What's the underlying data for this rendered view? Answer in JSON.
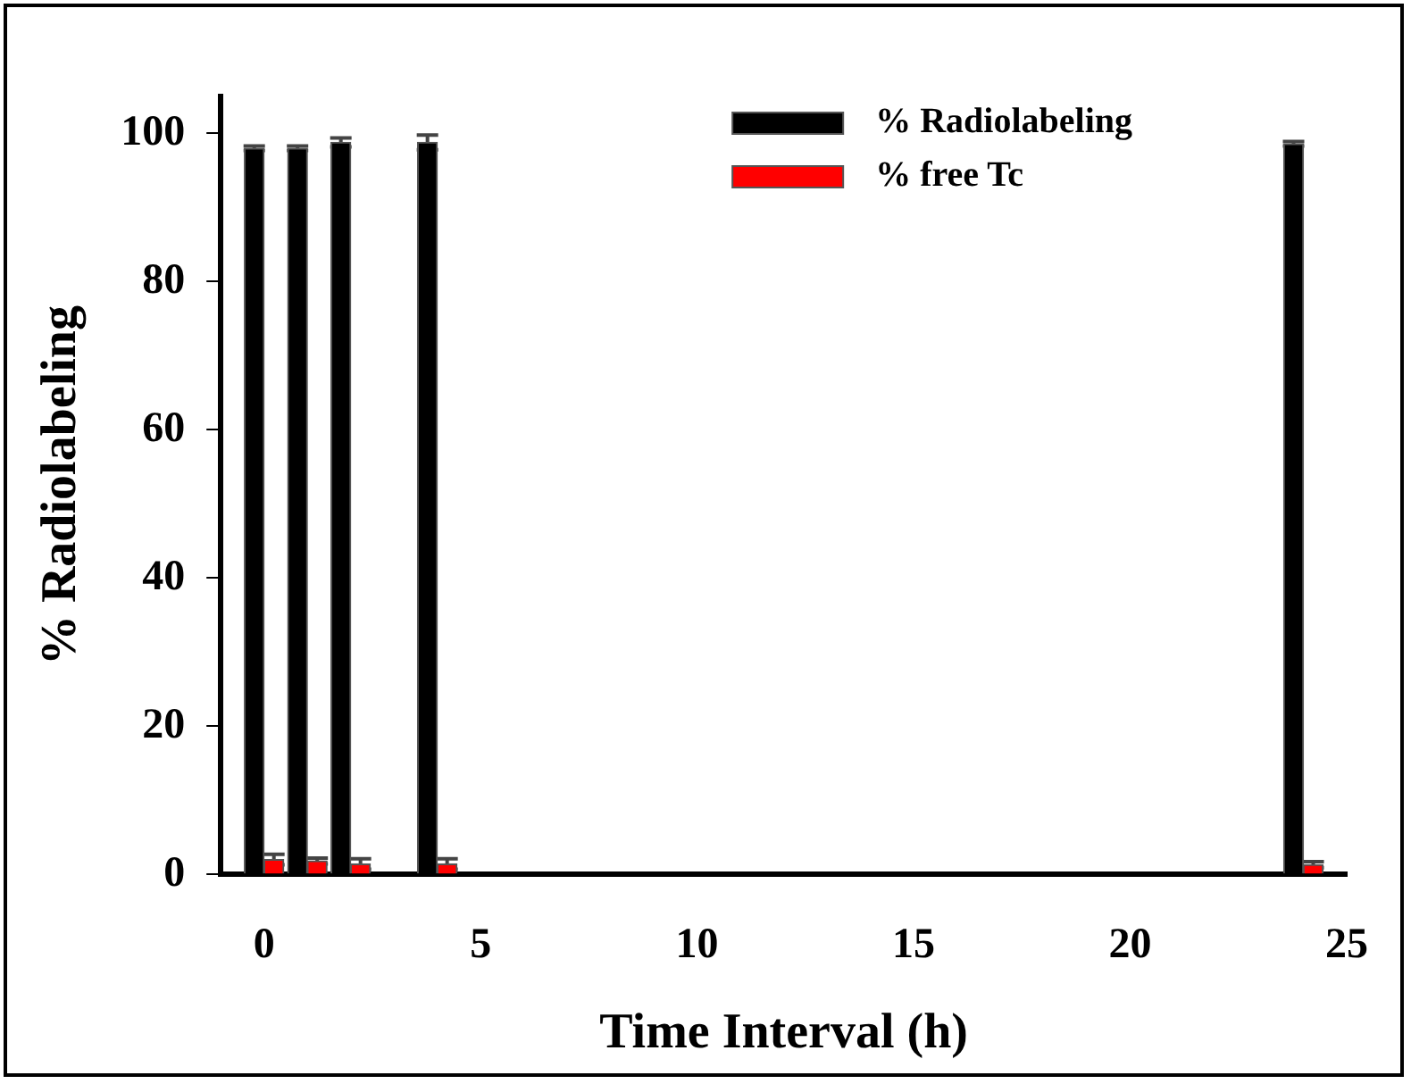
{
  "chart_data": {
    "type": "bar",
    "xlabel": "Time Interval (h)",
    "ylabel": "% Radiolabeling",
    "x": [
      0,
      1,
      2,
      4,
      24
    ],
    "series": [
      {
        "name": "% Radiolabeling",
        "color": "#000000",
        "values": [
          98,
          98,
          98.8,
          98.8,
          98.6
        ],
        "errors": [
          0.3,
          0.3,
          0.6,
          1,
          0.3
        ]
      },
      {
        "name": "% free Tc",
        "color": "#ff0000",
        "values": [
          2,
          1.8,
          1.4,
          1.4,
          1.3
        ],
        "errors": [
          0.7,
          0.4,
          0.7,
          0.7,
          0.4
        ]
      }
    ],
    "xlim": [
      -1,
      25
    ],
    "xticks": [
      0,
      5,
      10,
      15,
      20,
      25
    ],
    "ylim": [
      0,
      105
    ],
    "yticks": [
      0,
      20,
      40,
      60,
      80,
      100
    ],
    "grid": false,
    "legend": "top right"
  }
}
